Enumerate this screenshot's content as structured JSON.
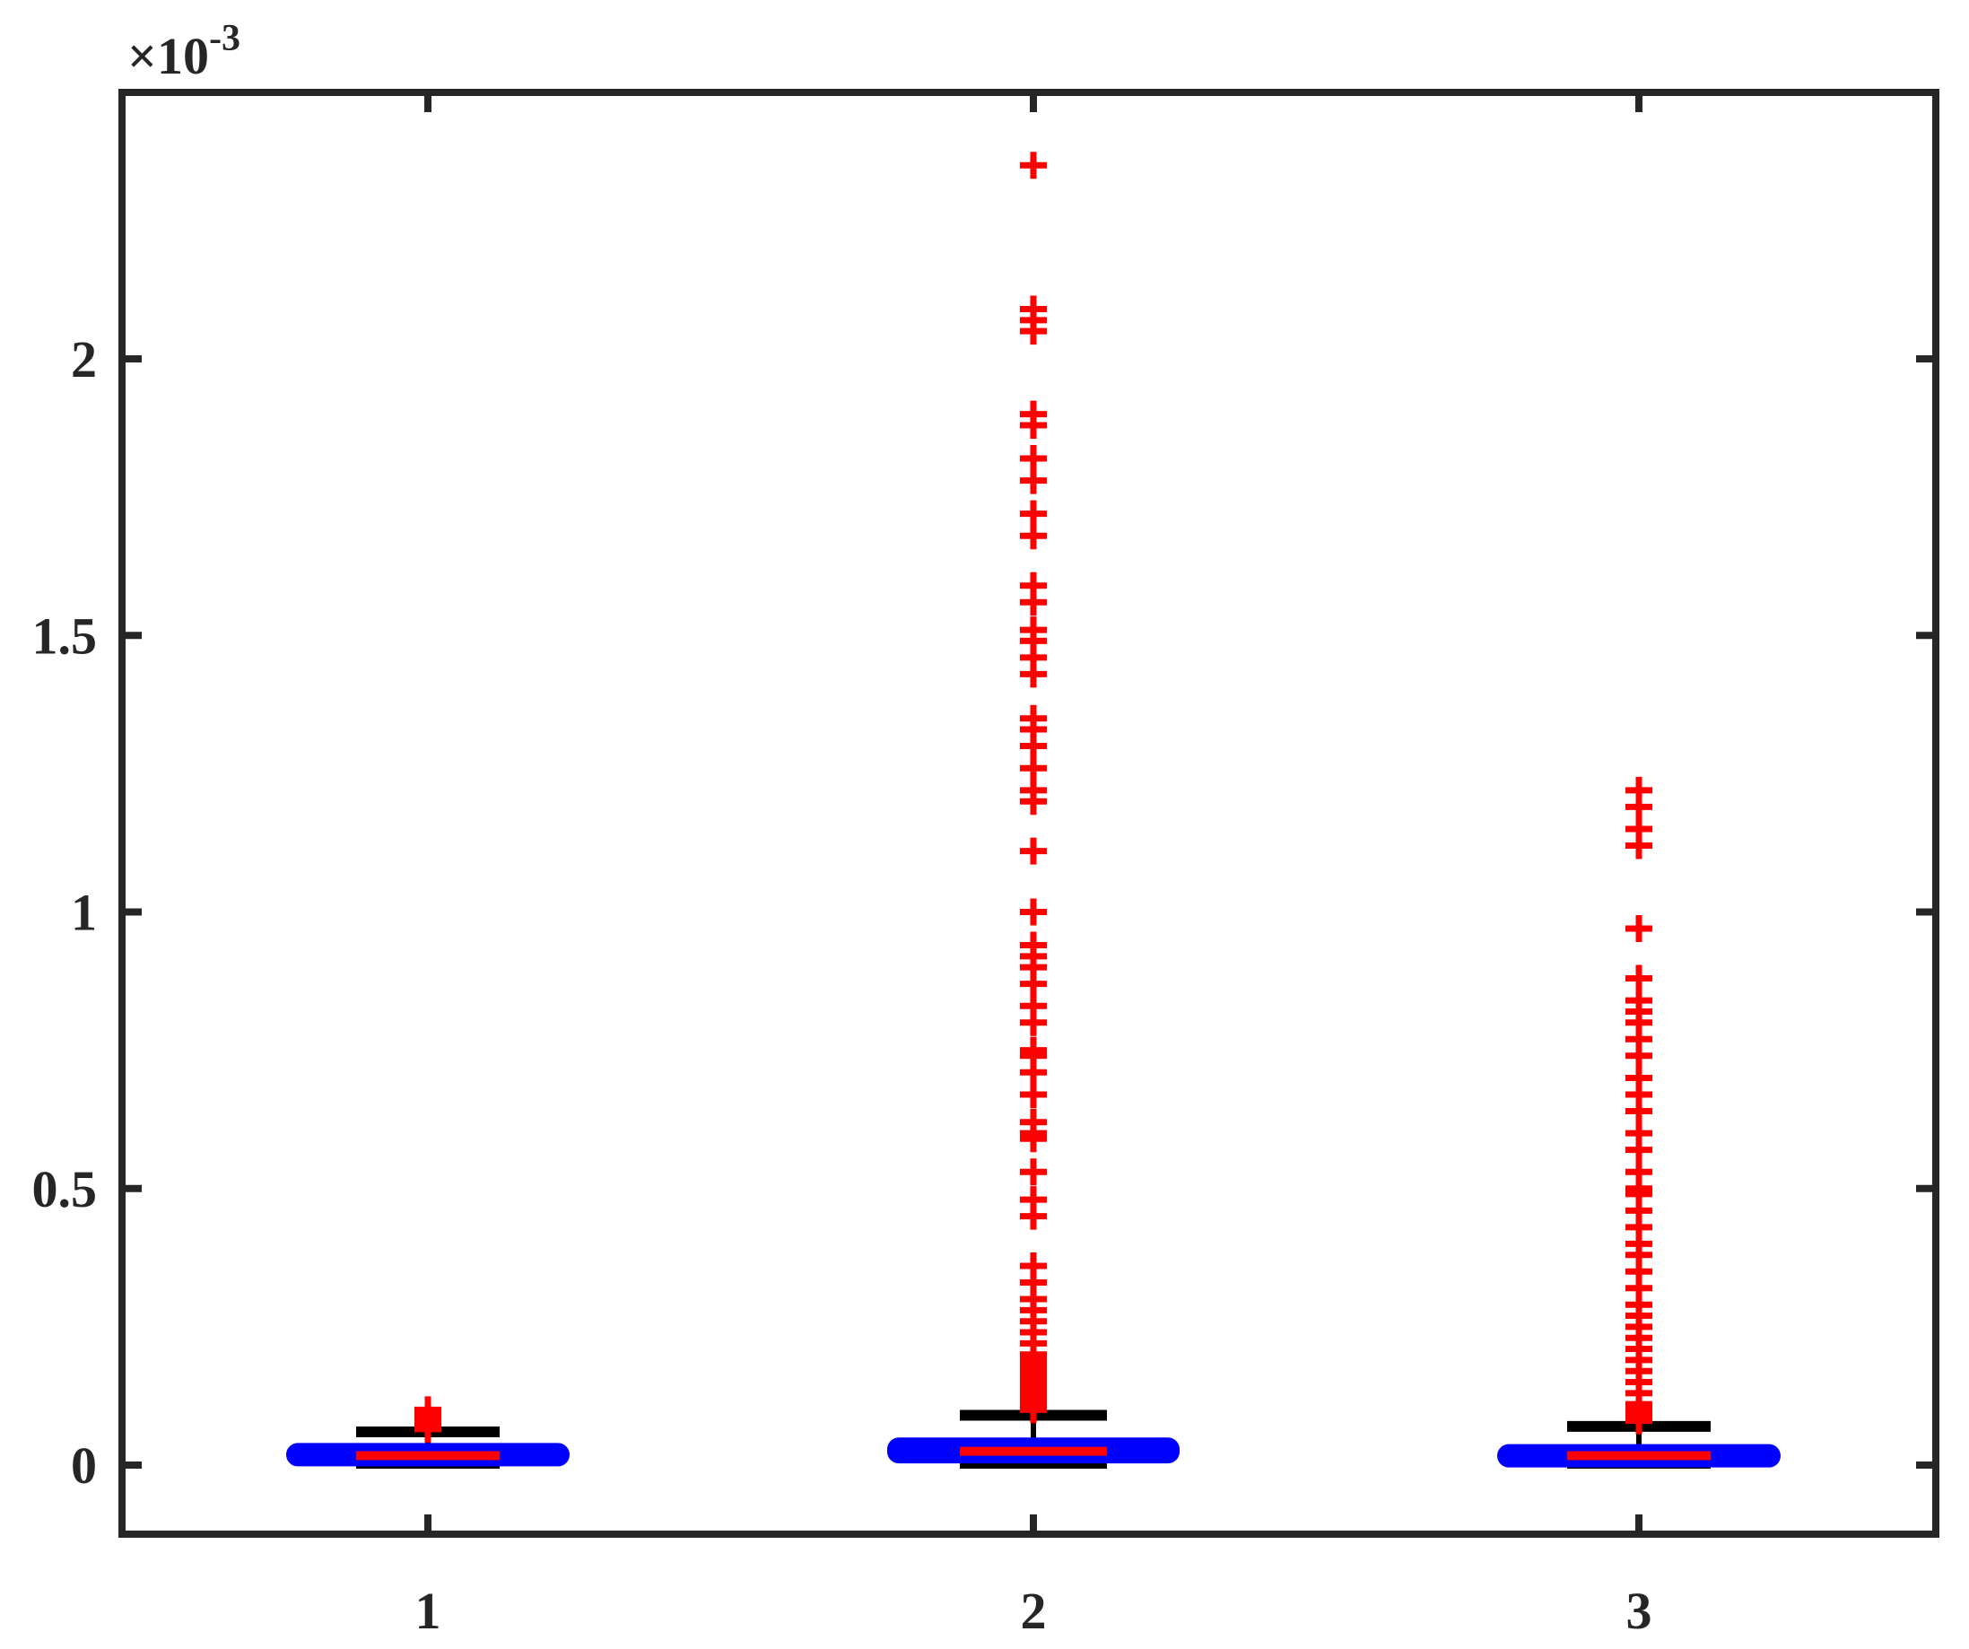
{
  "chart_data": {
    "type": "box",
    "title": "",
    "xlabel": "",
    "ylabel": "",
    "exponent_label": {
      "base": "×10",
      "power": "-3"
    },
    "categories": [
      "1",
      "2",
      "3"
    ],
    "yticks": [
      {
        "value": 0,
        "label": "0"
      },
      {
        "value": 0.5,
        "label": "0.5"
      },
      {
        "value": 1,
        "label": "1"
      },
      {
        "value": 1.5,
        "label": "1.5"
      },
      {
        "value": 2,
        "label": "2"
      }
    ],
    "ylim": [
      -0.12,
      2.46
    ],
    "y_unit_multiplier": "1e-3",
    "boxes": [
      {
        "category": "1",
        "q1": 0.005,
        "median": 0.017,
        "q3": 0.035,
        "whisker_low": 0.0,
        "whisker_high": 0.06,
        "outliers": [
          0.065,
          0.07,
          0.075,
          0.08,
          0.085,
          0.09,
          0.1
        ]
      },
      {
        "category": "2",
        "q1": 0.008,
        "median": 0.025,
        "q3": 0.045,
        "whisker_low": 0.0,
        "whisker_high": 0.09,
        "outliers": [
          0.1,
          0.11,
          0.12,
          0.13,
          0.14,
          0.15,
          0.16,
          0.17,
          0.18,
          0.19,
          0.2,
          0.22,
          0.24,
          0.26,
          0.28,
          0.3,
          0.33,
          0.36,
          0.45,
          0.48,
          0.53,
          0.59,
          0.6,
          0.62,
          0.67,
          0.71,
          0.74,
          0.75,
          0.8,
          0.83,
          0.87,
          0.9,
          0.92,
          0.94,
          1.0,
          1.11,
          1.2,
          1.22,
          1.26,
          1.3,
          1.33,
          1.35,
          1.43,
          1.46,
          1.49,
          1.51,
          1.56,
          1.59,
          1.68,
          1.72,
          1.78,
          1.82,
          1.88,
          1.9,
          2.05,
          2.07,
          2.09,
          2.35
        ]
      },
      {
        "category": "3",
        "q1": 0.005,
        "median": 0.017,
        "q3": 0.033,
        "whisker_low": 0.0,
        "whisker_high": 0.07,
        "outliers": [
          0.08,
          0.09,
          0.1,
          0.11,
          0.13,
          0.15,
          0.17,
          0.19,
          0.21,
          0.23,
          0.25,
          0.27,
          0.29,
          0.32,
          0.35,
          0.38,
          0.4,
          0.43,
          0.46,
          0.49,
          0.5,
          0.53,
          0.57,
          0.6,
          0.64,
          0.67,
          0.7,
          0.74,
          0.77,
          0.8,
          0.82,
          0.84,
          0.88,
          0.97,
          1.12,
          1.15,
          1.19,
          1.22
        ]
      }
    ],
    "colors": {
      "box": "#0000ff",
      "median": "#ff0000",
      "whisker": "#000000",
      "outlier": "#ff0000",
      "axes": "#262626"
    },
    "grid": false
  }
}
